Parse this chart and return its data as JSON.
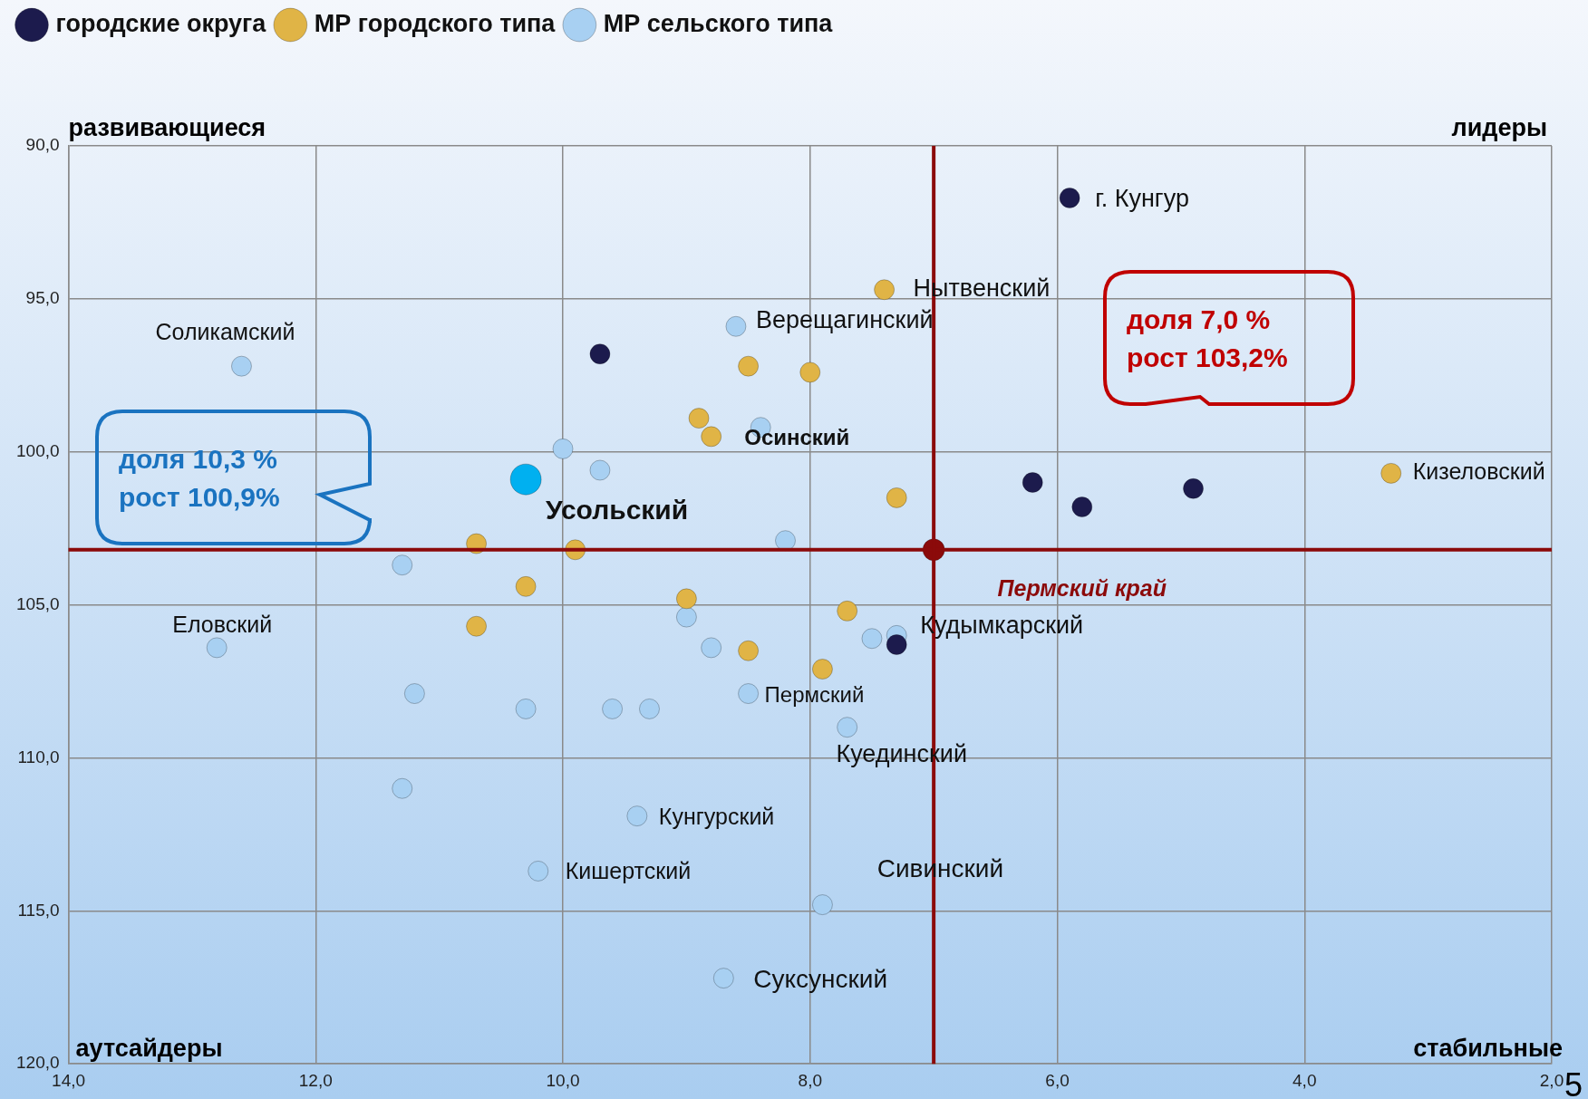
{
  "chart_data": {
    "type": "scatter",
    "xlim": [
      14,
      2
    ],
    "ylim": [
      120,
      90
    ],
    "xticks": [
      {
        "value": 14,
        "label": "14,0"
      },
      {
        "value": 12,
        "label": "12,0"
      },
      {
        "value": 10,
        "label": "10,0"
      },
      {
        "value": 8,
        "label": "8,0"
      },
      {
        "value": 6,
        "label": "6,0"
      },
      {
        "value": 4,
        "label": "4,0"
      },
      {
        "value": 2,
        "label": "2,0"
      }
    ],
    "yticks": [
      {
        "value": 90,
        "label": "90,0"
      },
      {
        "value": 95,
        "label": "95,0"
      },
      {
        "value": 100,
        "label": "100,0"
      },
      {
        "value": 105,
        "label": "105,0"
      },
      {
        "value": 110,
        "label": "110,0"
      },
      {
        "value": 115,
        "label": "115,0"
      },
      {
        "value": 120,
        "label": "120,0"
      }
    ],
    "grid": true,
    "legend": "top left",
    "marker": "circle",
    "series": [
      {
        "name": "городские округа",
        "color": "#1c1b4d",
        "x": [
          5.9,
          9.7,
          6.2,
          5.8,
          4.9,
          7.3
        ],
        "values": [
          91.7,
          96.8,
          101.0,
          101.8,
          101.2,
          106.3
        ]
      },
      {
        "name": "МР городского типа",
        "color": "#e0b446",
        "x": [
          7.4,
          8.5,
          8.0,
          8.9,
          8.8,
          7.3,
          3.3,
          10.7,
          9.9,
          10.3,
          9.0,
          7.7,
          10.7,
          8.5,
          7.9
        ],
        "values": [
          94.7,
          97.2,
          97.4,
          98.9,
          99.5,
          101.5,
          100.7,
          103.0,
          103.2,
          104.4,
          104.8,
          105.2,
          105.7,
          106.5,
          107.1
        ]
      },
      {
        "name": "МР сельского типа",
        "color": "#a8d0f2",
        "x": [
          8.6,
          12.6,
          8.4,
          10.0,
          9.7,
          8.2,
          11.3,
          12.8,
          9.0,
          8.8,
          7.5,
          7.3,
          11.2,
          10.3,
          9.6,
          9.3,
          8.5,
          7.7,
          11.3,
          9.4,
          10.2,
          7.9,
          8.7
        ],
        "values": [
          95.9,
          97.2,
          99.2,
          99.9,
          100.6,
          102.9,
          103.7,
          106.4,
          105.4,
          106.4,
          106.1,
          106.0,
          107.9,
          108.4,
          108.4,
          108.4,
          107.9,
          109.0,
          111.0,
          111.9,
          113.7,
          114.8,
          117.2
        ]
      },
      {
        "color": "#00b0f0",
        "x": [
          10.3
        ],
        "values": [
          100.9
        ]
      },
      {
        "color": "#8b0a0a",
        "x": [
          7.0
        ],
        "values": [
          103.2
        ]
      }
    ],
    "ref_lines": [
      {
        "axis": "y",
        "value": 103.2,
        "label": "Пермский край",
        "color": "#8b0a0a"
      },
      {
        "axis": "x",
        "value": 7.0,
        "color": "#8b0a0a"
      }
    ],
    "annotations": [
      "развивающиеся",
      "лидеры",
      "аутсайдеры",
      "стабильные",
      "доля 10,3 %\nрост 100,9%",
      "доля 7,0 %\nрост 103,2%",
      {
        "text": "г. Кунгур",
        "x": 5.9,
        "y": 91.7
      },
      {
        "text": "Нытвенский",
        "x": 7.4,
        "y": 94.7
      },
      {
        "text": "Верещагинский",
        "x": 8.6,
        "y": 95.9
      },
      {
        "text": "Соликамский",
        "x": 12.6,
        "y": 97.2
      },
      {
        "text": "Осинский",
        "x": 8.4,
        "y": 99.2
      },
      {
        "text": "Усольский",
        "x": 10.3,
        "y": 100.9
      },
      {
        "text": "Кизеловский",
        "x": 3.3,
        "y": 100.7
      },
      {
        "text": "Еловский",
        "x": 12.8,
        "y": 106.4
      },
      {
        "text": "Кудымкарский",
        "x": 7.3,
        "y": 106.0
      },
      {
        "text": "Пермский",
        "x": 8.5,
        "y": 107.9
      },
      {
        "text": "Куединский",
        "x": 7.7,
        "y": 109.0
      },
      {
        "text": "Кунгурский",
        "x": 9.4,
        "y": 111.9
      },
      {
        "text": "Кишертский",
        "x": 10.2,
        "y": 113.7
      },
      {
        "text": "Сивинский",
        "x": 7.9,
        "y": 114.8
      },
      {
        "text": "Суксунский",
        "x": 8.7,
        "y": 117.2
      },
      "5"
    ]
  }
}
